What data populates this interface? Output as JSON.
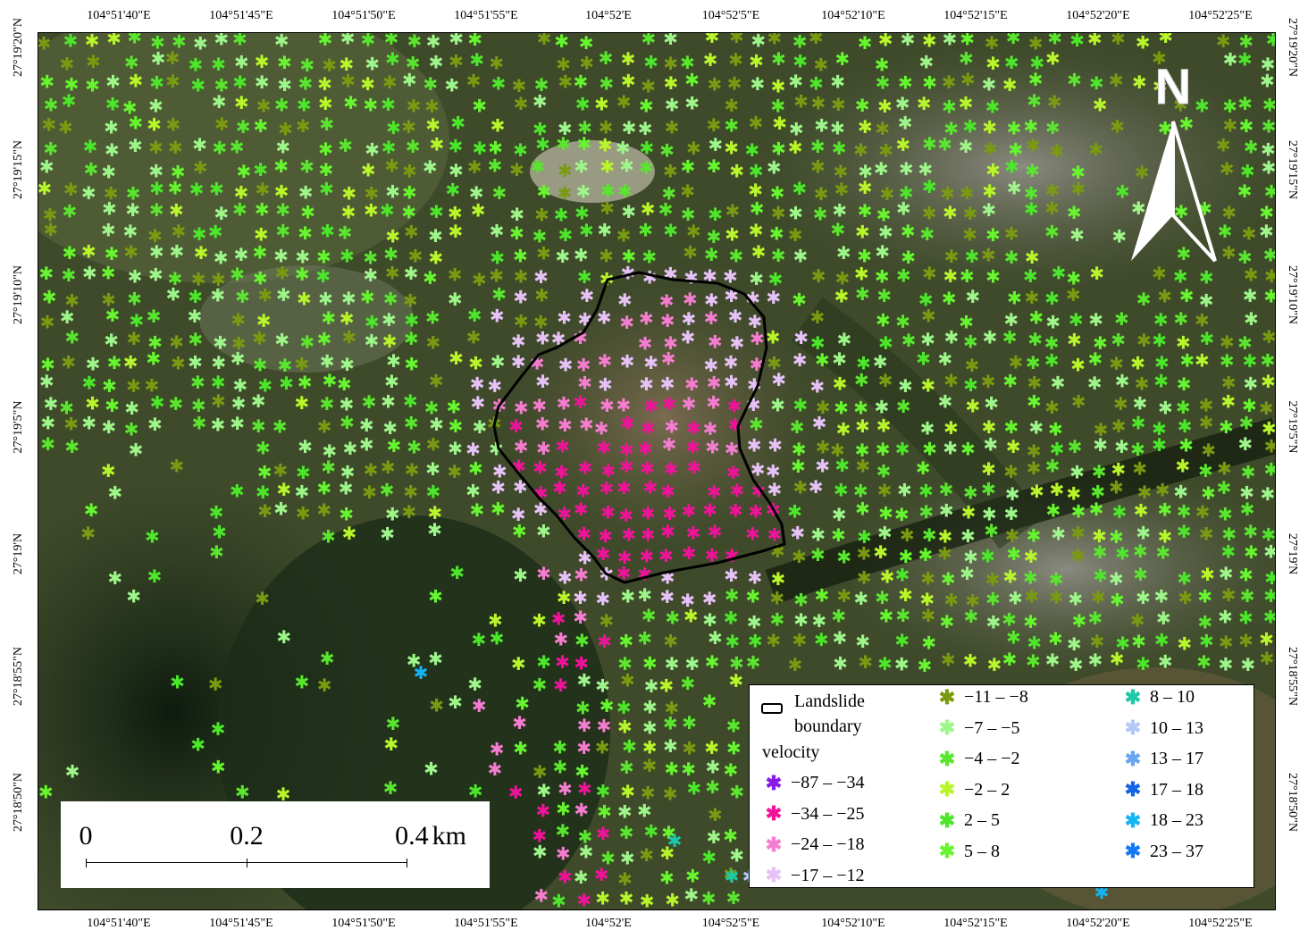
{
  "axes": {
    "lon_labels": [
      "104°51'40\"E",
      "104°51'45\"E",
      "104°51'50\"E",
      "104°51'55\"E",
      "104°52'E",
      "104°52'5\"E",
      "104°52'10\"E",
      "104°52'15\"E",
      "104°52'20\"E",
      "104°52'25\"E"
    ],
    "lat_labels": [
      "27°19'20\"N",
      "27°19'15\"N",
      "27°19'10\"N",
      "27°19'5\"N",
      "27°19'N",
      "27°18'55\"N",
      "27°18'50\"N"
    ]
  },
  "north_arrow": {
    "label": "N"
  },
  "scale_bar": {
    "labels": [
      "0",
      "0.2",
      "0.4"
    ],
    "unit": "km"
  },
  "legend": {
    "boundary_label_line1": "Landslide",
    "boundary_label_line2": "boundary",
    "velocity_title": "velocity",
    "classes": [
      {
        "range": "−87  –  −34",
        "color": "#8a1be6"
      },
      {
        "range": "−34  –  −25",
        "color": "#f0139a"
      },
      {
        "range": "−24  –  −18",
        "color": "#f57dd0"
      },
      {
        "range": "−17  –  −12",
        "color": "#e6c2f7"
      },
      {
        "range": "−11  –  −8",
        "color": "#7a9a12"
      },
      {
        "range": "−7  –  −5",
        "color": "#9ef58a"
      },
      {
        "range": "−4  –  −2",
        "color": "#5ae62e"
      },
      {
        "range": "−2  –  2",
        "color": "#b8f52a"
      },
      {
        "range": "2  –  5",
        "color": "#4ce62a"
      },
      {
        "range": "5  –  8",
        "color": "#66f52e"
      },
      {
        "range": "8  –  10",
        "color": "#1cc9a8"
      },
      {
        "range": "10  –  13",
        "color": "#b4c8f7"
      },
      {
        "range": "13  –  17",
        "color": "#6aa5f0"
      },
      {
        "range": "17  –  18",
        "color": "#1464e6"
      },
      {
        "range": "18  –  23",
        "color": "#14b4f5"
      },
      {
        "range": "23  –  37",
        "color": "#1478f5"
      }
    ]
  },
  "colors": {
    "imagery_dark": "#1e2a17",
    "imagery_mid": "#3d4a28",
    "imagery_light": "#6a6a48",
    "boundary": "#000000"
  }
}
